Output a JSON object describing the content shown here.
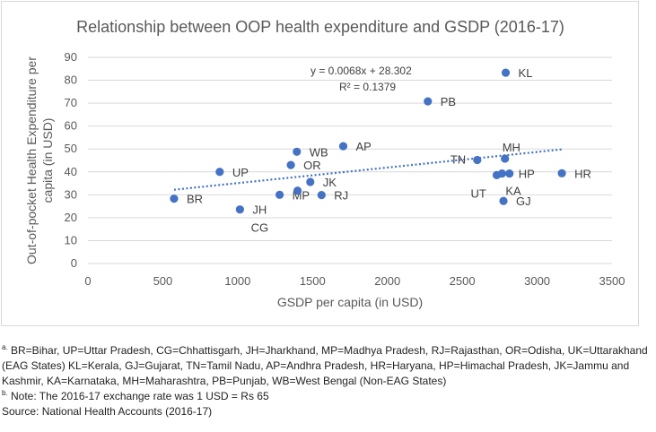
{
  "chart_data": {
    "type": "scatter",
    "title": "Relationship between OOP health expenditure and GSDP (2016-17)",
    "xlabel": "GSDP per capita (in USD)",
    "ylabel": "Out-of-pocket Health Expenditure per capita (in USD)",
    "ylabel_lines": [
      "Out-of-pocket Health Expenditure per",
      "capita (in USD)"
    ],
    "xlim": [
      0,
      3500
    ],
    "ylim": [
      0,
      90
    ],
    "x_ticks": [
      0,
      500,
      1000,
      1500,
      2000,
      2500,
      3000,
      3500
    ],
    "y_ticks": [
      0,
      10,
      20,
      30,
      40,
      50,
      60,
      70,
      80,
      90
    ],
    "grid": "horizontal",
    "marker_color": "#4472c4",
    "points": [
      {
        "label": "BR",
        "x": 575,
        "y": 28.3
      },
      {
        "label": "UP",
        "x": 880,
        "y": 40.0
      },
      {
        "label": "JH",
        "x": 1015,
        "y": 23.6
      },
      {
        "label": "MP",
        "x": 1280,
        "y": 30.0
      },
      {
        "label": "OR",
        "x": 1355,
        "y": 43.0
      },
      {
        "label": "WB",
        "x": 1395,
        "y": 48.8
      },
      {
        "label": "CG",
        "x": 1400,
        "y": 31.8
      },
      {
        "label": "JK",
        "x": 1485,
        "y": 35.6
      },
      {
        "label": "RJ",
        "x": 1560,
        "y": 29.9
      },
      {
        "label": "AP",
        "x": 1705,
        "y": 51.2
      },
      {
        "label": "PB",
        "x": 2270,
        "y": 70.8
      },
      {
        "label": "TN",
        "x": 2600,
        "y": 45.2
      },
      {
        "label": "UT",
        "x": 2730,
        "y": 38.6
      },
      {
        "label": "KA",
        "x": 2765,
        "y": 39.3
      },
      {
        "label": "GJ",
        "x": 2775,
        "y": 27.3
      },
      {
        "label": "MH",
        "x": 2785,
        "y": 45.8
      },
      {
        "label": "KL",
        "x": 2790,
        "y": 83.3
      },
      {
        "label": "HP",
        "x": 2815,
        "y": 39.3
      },
      {
        "label": "HR",
        "x": 3165,
        "y": 39.4
      }
    ],
    "trendline": {
      "type": "linear",
      "slope": 0.0068,
      "intercept": 28.302,
      "x_range": [
        575,
        3165
      ],
      "color": "#4472c4",
      "equation": "y = 0.0068x + 28.302",
      "r2": "R² = 0.1379"
    }
  },
  "notes": {
    "note_a_marker": "a.",
    "note_a_text": " BR=Bihar, UP=Uttar Pradesh, CG=Chhattisgarh, JH=Jharkhand, MP=Madhya Pradesh, RJ=Rajasthan, OR=Odisha, UK=Uttarakhand (EAG States) KL=Kerala, GJ=Gujarat, TN=Tamil Nadu, AP=Andhra Pradesh, HR=Haryana, HP=Himachal Pradesh, JK=Jammu and Kashmir, KA=Karnataka, MH=Maharashtra, PB=Punjab, WB=West Bengal (Non-EAG States)",
    "note_b_marker": "b.",
    "note_b_text": " Note: The 2016-17 exchange rate was 1 USD = Rs 65",
    "source": "Source: National Health Accounts (2016-17)"
  }
}
